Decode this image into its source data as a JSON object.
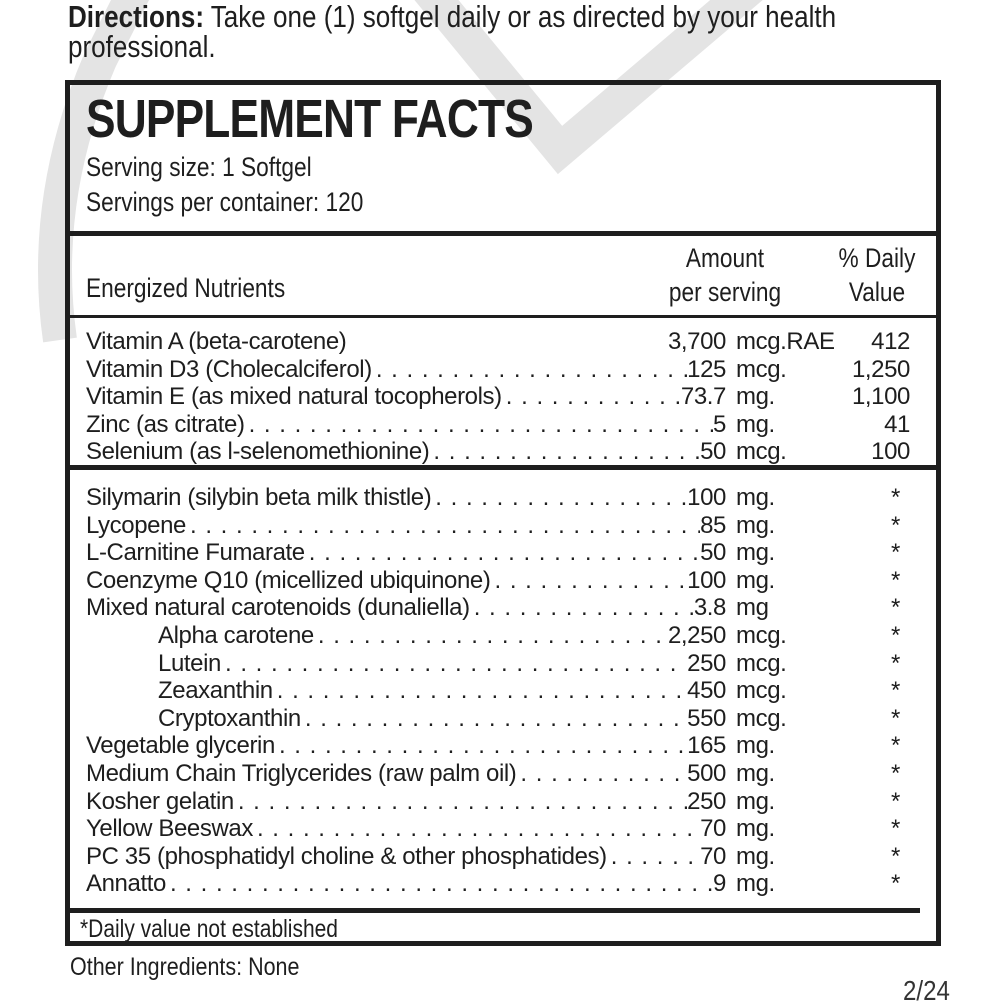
{
  "directions": {
    "label": "Directions:",
    "text": " Take one (1) softgel daily or as directed by your health",
    "text2": "professional."
  },
  "facts": {
    "title": "SUPPLEMENT FACTS",
    "serving_size": "Serving size: 1 Softgel",
    "servings_per_container": "Servings per container: 120",
    "headers": {
      "nutrients": "Energized Nutrients",
      "amount1": "Amount",
      "amount2": "per serving",
      "dv1": "% Daily",
      "dv2": "Value"
    },
    "section1": [
      {
        "name": "Vitamin A (beta-carotene)",
        "amount": "3,700",
        "unit": "mcg.RAE",
        "dv": "412",
        "dots": false
      },
      {
        "name": "Vitamin D3 (Cholecalciferol)",
        "amount": "125",
        "unit": "mcg.",
        "dv": "1,250",
        "dots": true
      },
      {
        "name": "Vitamin E (as mixed natural tocopherols)",
        "amount": "73.7",
        "unit": "mg.",
        "dv": "1,100",
        "dots": true
      },
      {
        "name": "Zinc (as citrate)",
        "amount": "5",
        "unit": "mg.",
        "dv": "41",
        "dots": true
      },
      {
        "name": "Selenium (as l-selenomethionine)",
        "amount": "50",
        "unit": "mcg.",
        "dv": "100",
        "dots": true
      }
    ],
    "section2": [
      {
        "name": "Silymarin (silybin beta milk thistle)",
        "amount": "100",
        "unit": "mg.",
        "dv": "*"
      },
      {
        "name": "Lycopene",
        "amount": "85",
        "unit": "mg.",
        "dv": "*"
      },
      {
        "name": "L-Carnitine Fumarate",
        "amount": "50",
        "unit": "mg.",
        "dv": "*"
      },
      {
        "name": "Coenzyme Q10 (micellized ubiquinone)",
        "amount": "100",
        "unit": "mg.",
        "dv": "*"
      },
      {
        "name": "Mixed natural carotenoids (dunaliella)",
        "amount": "3.8",
        "unit": "mg",
        "dv": "*"
      },
      {
        "name": "Alpha carotene",
        "amount": "2,250",
        "unit": "mcg.",
        "dv": "*",
        "indent": true
      },
      {
        "name": "Lutein",
        "amount": "250",
        "unit": "mcg.",
        "dv": "*",
        "indent": true
      },
      {
        "name": "Zeaxanthin",
        "amount": "450",
        "unit": "mcg.",
        "dv": "*",
        "indent": true
      },
      {
        "name": "Cryptoxanthin",
        "amount": "550",
        "unit": "mcg.",
        "dv": "*",
        "indent": true
      },
      {
        "name": "Vegetable glycerin",
        "amount": "165",
        "unit": "mg.",
        "dv": "*"
      },
      {
        "name": "Medium Chain Triglycerides (raw palm oil)",
        "amount": "500",
        "unit": "mg.",
        "dv": "*"
      },
      {
        "name": "Kosher gelatin",
        "amount": "250",
        "unit": "mg.",
        "dv": "*"
      },
      {
        "name": "Yellow Beeswax",
        "amount": "70",
        "unit": "mg.",
        "dv": "*"
      },
      {
        "name": "PC 35 (phosphatidyl choline & other phosphatides)",
        "amount": "70",
        "unit": "mg.",
        "dv": "*"
      },
      {
        "name": "Annatto",
        "amount": "9",
        "unit": "mg.",
        "dv": "*"
      }
    ],
    "footnote": "*Daily value not established"
  },
  "other_ingredients": "Other Ingredients: None",
  "page_number": "2/24"
}
